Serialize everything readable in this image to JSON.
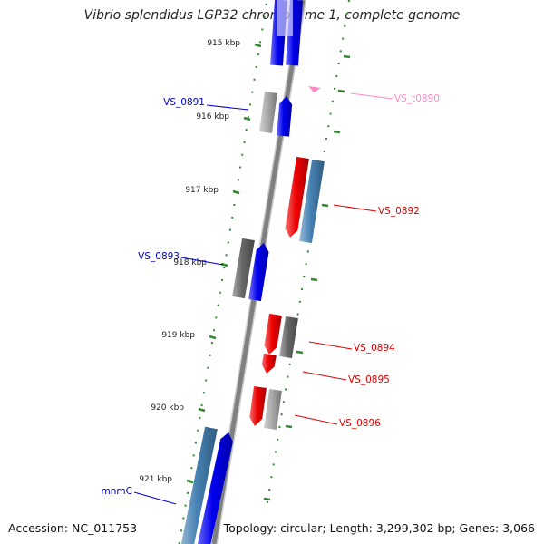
{
  "title": "Vibrio splendidus LGP32 chromosome 1, complete genome",
  "footer": {
    "accession": "Accession: NC_011753",
    "summary": "Topology: circular; Length: 3,299,302 bp; Genes: 3,066"
  },
  "ticks": [
    {
      "label": "915 kbp"
    },
    {
      "label": "916 kbp"
    },
    {
      "label": "917 kbp"
    },
    {
      "label": "918 kbp"
    },
    {
      "label": "919 kbp"
    },
    {
      "label": "920 kbp"
    },
    {
      "label": "921 kbp"
    }
  ],
  "gene_labels": [
    {
      "text": "VS_0891",
      "color": "#0000cc"
    },
    {
      "text": "VS_t0890",
      "color": "#ff88cc"
    },
    {
      "text": "VS_0892",
      "color": "#dd0000"
    },
    {
      "text": "VS_0893",
      "color": "#0000cc"
    },
    {
      "text": "VS_0894",
      "color": "#dd0000"
    },
    {
      "text": "VS_0895",
      "color": "#dd0000"
    },
    {
      "text": "VS_0896",
      "color": "#dd0000"
    },
    {
      "text": "mnmC",
      "color": "#0000cc"
    }
  ],
  "colors": {
    "backbone": "#808080",
    "forward_gene": "#0000ee",
    "reverse_gene": "#ee0000",
    "cog_steel": "#4682b4",
    "cog_grey": "#666666",
    "cog_lightgrey": "#aaaaaa",
    "trna": "#ff88cc",
    "dotted_track": "#2e8b2e"
  }
}
